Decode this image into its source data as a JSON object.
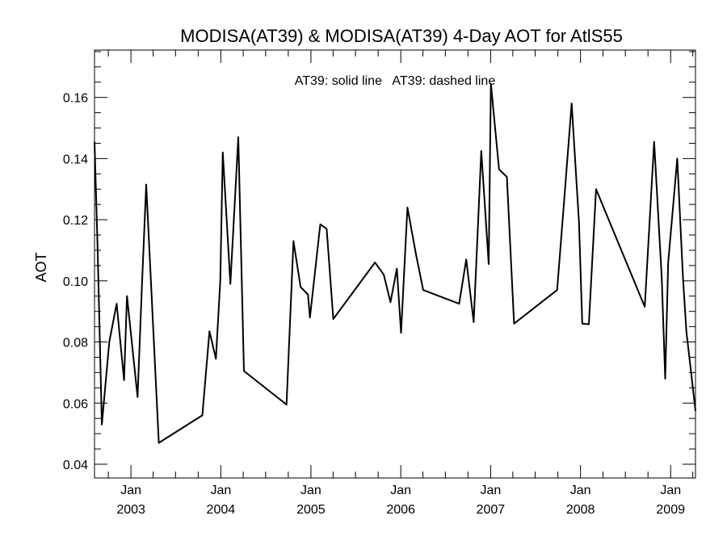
{
  "chart_data": {
    "type": "line",
    "title": "MODISA(AT39) & MODISA(AT39) 4-Day AOT for AtlS55",
    "annotation": "AT39: solid line   AT39: dashed line",
    "ylabel": "AOT",
    "xlabel": "",
    "grid": false,
    "xlim": [
      "2002-08-06",
      "2009-04-12"
    ],
    "ylim": [
      0.0355,
      0.1755
    ],
    "yticks": [
      0.04,
      0.06,
      0.08,
      0.1,
      0.12,
      0.14,
      0.16
    ],
    "ytick_labels": [
      "0.04",
      "0.06",
      "0.08",
      "0.10",
      "0.12",
      "0.14",
      "0.16"
    ],
    "xticks": [
      {
        "date": "2003-01-01",
        "month": "Jan",
        "year": "2003"
      },
      {
        "date": "2004-01-01",
        "month": "Jan",
        "year": "2004"
      },
      {
        "date": "2005-01-01",
        "month": "Jan",
        "year": "2005"
      },
      {
        "date": "2006-01-01",
        "month": "Jan",
        "year": "2006"
      },
      {
        "date": "2007-01-01",
        "month": "Jan",
        "year": "2007"
      },
      {
        "date": "2008-01-01",
        "month": "Jan",
        "year": "2008"
      },
      {
        "date": "2009-01-01",
        "month": "Jan",
        "year": "2009"
      }
    ],
    "series": [
      {
        "style": "solid",
        "color": "#000000",
        "points": [
          [
            "2002-08-06",
            0.1455
          ],
          [
            "2002-08-18",
            0.112
          ],
          [
            "2002-09-05",
            0.053
          ],
          [
            "2002-10-05",
            0.08
          ],
          [
            "2002-11-04",
            0.0925
          ],
          [
            "2002-12-04",
            0.0675
          ],
          [
            "2002-12-16",
            0.095
          ],
          [
            "2003-01-28",
            0.062
          ],
          [
            "2003-02-14",
            0.097
          ],
          [
            "2003-03-04",
            0.1315
          ],
          [
            "2003-04-24",
            0.047
          ],
          [
            "2003-10-18",
            0.056
          ],
          [
            "2003-11-16",
            0.0835
          ],
          [
            "2003-12-12",
            0.0745
          ],
          [
            "2003-12-30",
            0.1
          ],
          [
            "2004-01-09",
            0.142
          ],
          [
            "2004-02-09",
            0.099
          ],
          [
            "2004-03-12",
            0.147
          ],
          [
            "2004-04-04",
            0.0705
          ],
          [
            "2004-09-24",
            0.0595
          ],
          [
            "2004-10-22",
            0.113
          ],
          [
            "2004-11-20",
            0.098
          ],
          [
            "2004-12-20",
            0.0955
          ],
          [
            "2004-12-28",
            0.088
          ],
          [
            "2005-02-08",
            0.1185
          ],
          [
            "2005-03-06",
            0.117
          ],
          [
            "2005-04-02",
            0.0875
          ],
          [
            "2005-09-18",
            0.106
          ],
          [
            "2005-10-24",
            0.102
          ],
          [
            "2005-11-20",
            0.093
          ],
          [
            "2005-12-16",
            0.104
          ],
          [
            "2006-01-02",
            0.083
          ],
          [
            "2006-01-28",
            0.124
          ],
          [
            "2006-03-04",
            0.1085
          ],
          [
            "2006-04-02",
            0.097
          ],
          [
            "2006-08-26",
            0.0925
          ],
          [
            "2006-09-24",
            0.107
          ],
          [
            "2006-10-24",
            0.0865
          ],
          [
            "2006-11-24",
            0.1425
          ],
          [
            "2006-12-24",
            0.1055
          ],
          [
            "2007-01-02",
            0.1645
          ],
          [
            "2007-02-04",
            0.1365
          ],
          [
            "2007-03-08",
            0.134
          ],
          [
            "2007-04-06",
            0.086
          ],
          [
            "2007-09-28",
            0.097
          ],
          [
            "2007-10-30",
            0.13
          ],
          [
            "2007-11-26",
            0.158
          ],
          [
            "2007-12-26",
            0.119
          ],
          [
            "2008-01-08",
            0.086
          ],
          [
            "2008-02-04",
            0.0858
          ],
          [
            "2008-03-04",
            0.13
          ],
          [
            "2008-09-18",
            0.0915
          ],
          [
            "2008-10-26",
            0.1455
          ],
          [
            "2008-11-26",
            0.101
          ],
          [
            "2008-12-10",
            0.068
          ],
          [
            "2008-12-22",
            0.106
          ],
          [
            "2009-01-28",
            0.14
          ],
          [
            "2009-02-20",
            0.101
          ],
          [
            "2009-03-06",
            0.0835
          ],
          [
            "2009-04-12",
            0.0575
          ]
        ]
      }
    ]
  }
}
